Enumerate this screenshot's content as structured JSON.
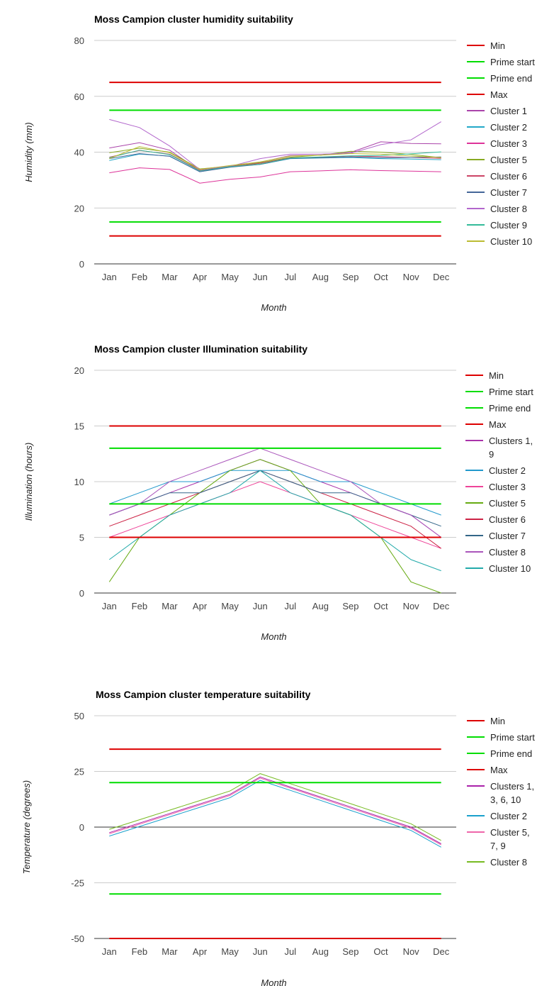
{
  "chart_data": [
    {
      "type": "line",
      "title": "Moss Campion cluster humidity suitability",
      "xlabel": "Month",
      "ylabel": "Humidity (mm)",
      "ylim": [
        0,
        80
      ],
      "yticks": [
        0,
        20,
        40,
        60,
        80
      ],
      "grid": true,
      "legend": "right",
      "categories": [
        "Jan",
        "Feb",
        "Mar",
        "Apr",
        "May",
        "Jun",
        "Jul",
        "Aug",
        "Sep",
        "Oct",
        "Nov",
        "Dec"
      ],
      "series": [
        {
          "name": "Min",
          "color": "#dd0000",
          "values": [
            10,
            10,
            10,
            10,
            10,
            10,
            10,
            10,
            10,
            10,
            10,
            10
          ]
        },
        {
          "name": "Prime start",
          "color": "#00dd00",
          "values": [
            15,
            15,
            15,
            15,
            15,
            15,
            15,
            15,
            15,
            15,
            15,
            15
          ]
        },
        {
          "name": "Prime end",
          "color": "#00dd00",
          "values": [
            55,
            55,
            55,
            55,
            55,
            55,
            55,
            55,
            55,
            55,
            55,
            55
          ]
        },
        {
          "name": "Max",
          "color": "#dd0000",
          "values": [
            65,
            65,
            65,
            65,
            65,
            65,
            65,
            65,
            65,
            65,
            65,
            65
          ]
        },
        {
          "name": "Cluster 1",
          "color": "#aa44aa",
          "values": [
            41.5,
            43.4,
            40.7,
            33.3,
            34.7,
            36.4,
            38.8,
            38.9,
            39.9,
            43.7,
            43.1,
            43.0
          ]
        },
        {
          "name": "Cluster 2",
          "color": "#22a8c8",
          "values": [
            37.0,
            39.3,
            38.6,
            33.0,
            34.8,
            35.6,
            37.7,
            37.9,
            38.1,
            37.7,
            37.5,
            37.3
          ]
        },
        {
          "name": "Cluster 3",
          "color": "#dd3399",
          "values": [
            32.6,
            34.4,
            33.8,
            28.9,
            30.3,
            31.1,
            33.0,
            33.3,
            33.7,
            33.4,
            33.2,
            33.0
          ]
        },
        {
          "name": "Cluster 5",
          "color": "#88aa22",
          "values": [
            39.8,
            41.4,
            40.0,
            34.0,
            35.0,
            36.2,
            38.2,
            38.9,
            40.3,
            40.0,
            39.2,
            38.0
          ]
        },
        {
          "name": "Cluster 6",
          "color": "#cc4466",
          "values": [
            38.2,
            40.6,
            39.3,
            33.5,
            34.9,
            36.0,
            38.0,
            38.1,
            38.6,
            38.4,
            38.1,
            37.8
          ]
        },
        {
          "name": "Cluster 7",
          "color": "#446699",
          "values": [
            37.7,
            39.5,
            38.5,
            33.0,
            34.6,
            35.6,
            37.8,
            38.0,
            38.3,
            38.0,
            38.1,
            38.3
          ]
        },
        {
          "name": "Cluster 8",
          "color": "#b266cc",
          "values": [
            51.7,
            48.8,
            42.2,
            33.8,
            34.9,
            37.7,
            39.3,
            39.3,
            39.6,
            42.7,
            44.4,
            50.9
          ]
        },
        {
          "name": "Cluster 9",
          "color": "#33bb99",
          "values": [
            38.0,
            40.7,
            39.1,
            33.3,
            34.8,
            35.7,
            37.9,
            38.3,
            38.7,
            38.8,
            39.4,
            40.1
          ]
        },
        {
          "name": "Cluster 10",
          "color": "#bbbb33",
          "values": [
            37.7,
            42.0,
            39.8,
            33.8,
            35.2,
            36.5,
            38.6,
            38.9,
            39.5,
            39.3,
            38.6,
            38.1
          ]
        }
      ]
    },
    {
      "type": "line",
      "title": "Moss Campion cluster Illumination suitability",
      "xlabel": "Month",
      "ylabel": "Illumination (hours)",
      "ylim": [
        0,
        20
      ],
      "yticks": [
        0,
        5,
        10,
        15,
        20
      ],
      "grid": true,
      "legend": "right",
      "categories": [
        "Jan",
        "Feb",
        "Mar",
        "Apr",
        "May",
        "Jun",
        "Jul",
        "Aug",
        "Sep",
        "Oct",
        "Nov",
        "Dec"
      ],
      "series": [
        {
          "name": "Min",
          "color": "#dd0000",
          "values": [
            5,
            5,
            5,
            5,
            5,
            5,
            5,
            5,
            5,
            5,
            5,
            5
          ]
        },
        {
          "name": "Prime start",
          "color": "#00dd00",
          "values": [
            8,
            8,
            8,
            8,
            8,
            8,
            8,
            8,
            8,
            8,
            8,
            8
          ]
        },
        {
          "name": "Prime end",
          "color": "#00dd00",
          "values": [
            13,
            13,
            13,
            13,
            13,
            13,
            13,
            13,
            13,
            13,
            13,
            13
          ]
        },
        {
          "name": "Max",
          "color": "#dd0000",
          "values": [
            15,
            15,
            15,
            15,
            15,
            15,
            15,
            15,
            15,
            15,
            15,
            15
          ]
        },
        {
          "name": "Clusters 1, 9",
          "color": "#aa33aa",
          "values": [
            7,
            8,
            9,
            10,
            11,
            12,
            11,
            10,
            9,
            8,
            7,
            5
          ]
        },
        {
          "name": "Cluster 2",
          "color": "#2299cc",
          "values": [
            8,
            9,
            10,
            10,
            11,
            11,
            11,
            10,
            10,
            9,
            8,
            7
          ]
        },
        {
          "name": "Cluster 3",
          "color": "#ee4499",
          "values": [
            5,
            6,
            7,
            8,
            9,
            10,
            9,
            8,
            7,
            6,
            5,
            4
          ]
        },
        {
          "name": "Cluster 5",
          "color": "#66aa11",
          "values": [
            1,
            5,
            7,
            9,
            11,
            12,
            11,
            8,
            7,
            5,
            1,
            0
          ]
        },
        {
          "name": "Cluster 6",
          "color": "#cc2244",
          "values": [
            6,
            7,
            8,
            9,
            10,
            11,
            10,
            9,
            8,
            7,
            6,
            4
          ]
        },
        {
          "name": "Cluster 7",
          "color": "#336688",
          "values": [
            7,
            8,
            9,
            9,
            10,
            11,
            10,
            9,
            9,
            8,
            7,
            6
          ]
        },
        {
          "name": "Cluster 8",
          "color": "#aa55bb",
          "values": [
            7,
            8,
            10,
            11,
            12,
            13,
            12,
            11,
            10,
            8,
            7,
            5
          ]
        },
        {
          "name": "Cluster 10",
          "color": "#22aaaa",
          "values": [
            3,
            5,
            7,
            8,
            9,
            11,
            9,
            8,
            7,
            5,
            3,
            2
          ]
        }
      ]
    },
    {
      "type": "line",
      "title": "Moss Campion cluster temperature suitability",
      "xlabel": "Month",
      "ylabel": "Temperature (degrees)",
      "ylim": [
        -50,
        50
      ],
      "yticks": [
        -50,
        -25,
        0,
        25,
        50
      ],
      "grid": true,
      "legend": "right",
      "categories": [
        "Jan",
        "Feb",
        "Mar",
        "Apr",
        "May",
        "Jun",
        "Jul",
        "Aug",
        "Sep",
        "Oct",
        "Nov",
        "Dec"
      ],
      "series": [
        {
          "name": "Min",
          "color": "#dd0000",
          "values": [
            -50,
            -50,
            -50,
            -50,
            -50,
            -50,
            -50,
            -50,
            -50,
            -50,
            -50,
            -50
          ]
        },
        {
          "name": "Prime start",
          "color": "#00dd00",
          "values": [
            -30,
            -30,
            -30,
            -30,
            -30,
            -30,
            -30,
            -30,
            -30,
            -30,
            -30,
            -30
          ]
        },
        {
          "name": "Prime end",
          "color": "#00dd00",
          "values": [
            20,
            20,
            20,
            20,
            20,
            20,
            20,
            20,
            20,
            20,
            20,
            20
          ]
        },
        {
          "name": "Max",
          "color": "#dd0000",
          "values": [
            35,
            35,
            35,
            35,
            35,
            35,
            35,
            35,
            35,
            35,
            35,
            35
          ]
        },
        {
          "name": "Clusters 1, 3, 6, 10",
          "color": "#aa22aa",
          "values": [
            -2.5,
            1.8,
            6.1,
            10.4,
            14.7,
            22.5,
            18.0,
            13.5,
            9.0,
            4.5,
            0.0,
            -7.5
          ]
        },
        {
          "name": "Cluster 2",
          "color": "#1aa0cc",
          "values": [
            -4.0,
            0.3,
            4.6,
            8.9,
            13.2,
            21.0,
            16.5,
            12.0,
            7.5,
            3.0,
            -1.5,
            -9.0
          ]
        },
        {
          "name": "Cluster 5, 7, 9",
          "color": "#ee66aa",
          "values": [
            -3.0,
            1.3,
            5.6,
            9.9,
            14.2,
            22.0,
            17.5,
            13.0,
            8.5,
            4.0,
            -0.5,
            -8.0
          ]
        },
        {
          "name": "Cluster 8",
          "color": "#77bb22",
          "values": [
            -1.0,
            3.3,
            7.6,
            11.9,
            16.2,
            24.0,
            19.5,
            15.0,
            10.5,
            6.0,
            1.5,
            -6.0
          ]
        }
      ]
    }
  ]
}
